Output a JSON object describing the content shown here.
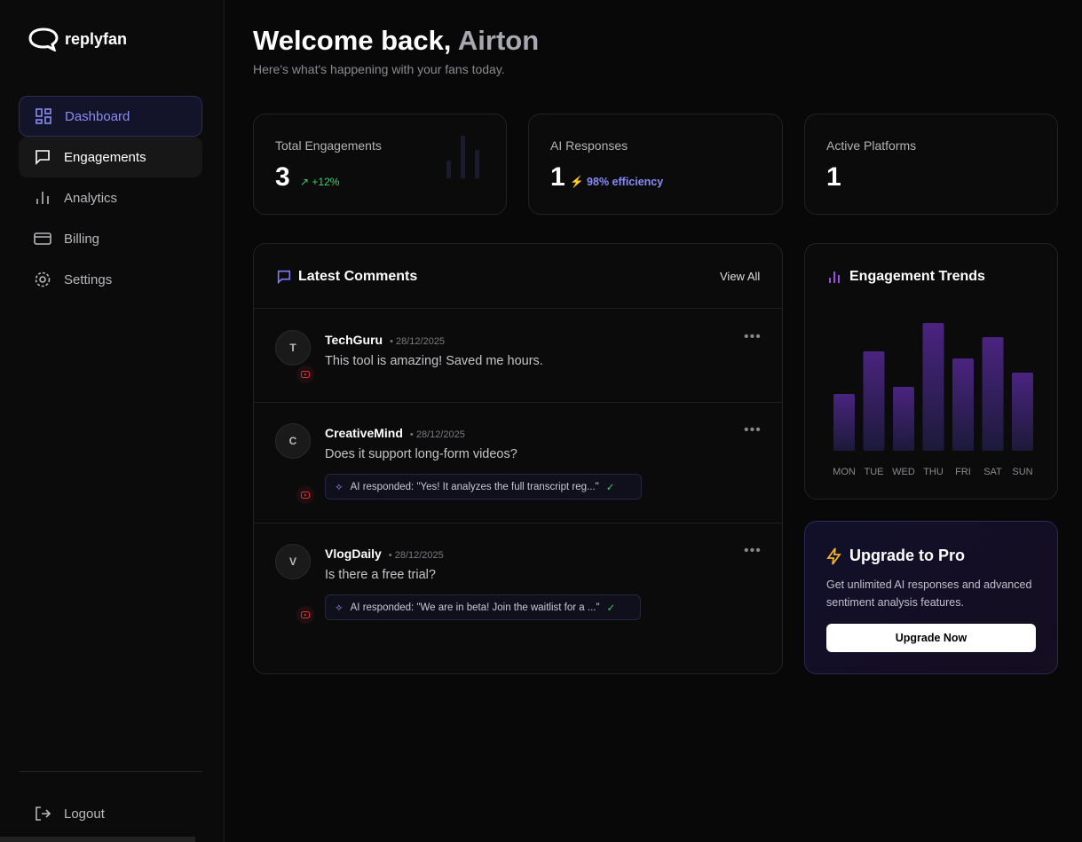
{
  "brand": "replyfan",
  "nav": [
    "Dashboard",
    "Engagements",
    "Analytics",
    "Billing",
    "Settings"
  ],
  "logout": "Logout",
  "header": {
    "title_prefix": "Welcome back,",
    "title_name": "Airton",
    "subtitle": "Here's what's happening with your fans today."
  },
  "stats": [
    {
      "label": "Total Engagements",
      "value": "3",
      "change": "+12%"
    },
    {
      "label": "AI Responses",
      "value": "1",
      "note": "98% efficiency"
    },
    {
      "label": "Active Platforms",
      "value": "1"
    }
  ],
  "comments": {
    "title": "Latest Comments",
    "view_all": "View All",
    "items": [
      {
        "initial": "T",
        "author": "TechGuru",
        "date": "28/12/2025",
        "text": "This tool is amazing! Saved me hours."
      },
      {
        "initial": "C",
        "author": "CreativeMind",
        "date": "28/12/2025",
        "text": "Does it support long-form videos?",
        "reply": "AI responded: \"Yes! It analyzes the full transcript reg...\""
      },
      {
        "initial": "V",
        "author": "VlogDaily",
        "date": "28/12/2025",
        "text": "Is there a free trial?",
        "reply": "AI responded: \"We are in beta! Join the waitlist for a ...\""
      }
    ]
  },
  "trends": {
    "title": "Engagement Trends",
    "categories": [
      "MON",
      "TUE",
      "WED",
      "THU",
      "FRI",
      "SAT",
      "SUN"
    ],
    "values": [
      40,
      70,
      45,
      90,
      65,
      80,
      55
    ]
  },
  "upgrade": {
    "title": "Upgrade to Pro",
    "text": "Get unlimited AI responses and advanced sentiment analysis features.",
    "button": "Upgrade Now"
  }
}
